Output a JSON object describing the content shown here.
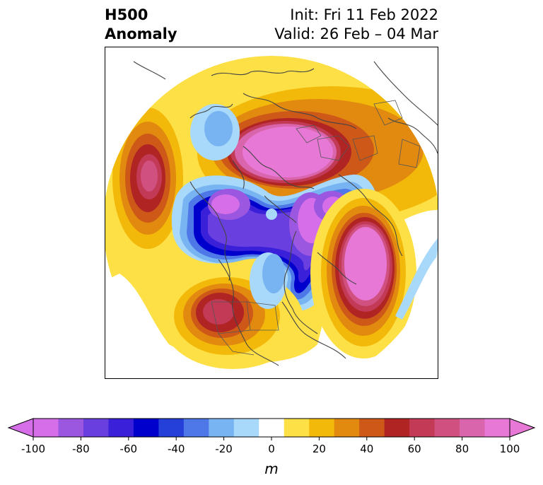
{
  "header": {
    "title_line1": "H500",
    "title_line2": "Anomaly",
    "init_text": "Init: Fri 11 Feb 2022",
    "valid_text": "Valid: 26 Feb – 04 Mar"
  },
  "colorbar": {
    "unit": "m",
    "ticks": [
      "-100",
      "-80",
      "-60",
      "-40",
      "-20",
      "0",
      "20",
      "40",
      "60",
      "80",
      "100"
    ],
    "levels": [
      -100,
      -90,
      -80,
      -70,
      -60,
      -50,
      -40,
      -30,
      -20,
      -10,
      10,
      20,
      30,
      40,
      50,
      60,
      70,
      80,
      90,
      100
    ],
    "colors": [
      "#d56ee8",
      "#9c57e0",
      "#6a3fe0",
      "#3a20d8",
      "#0000cc",
      "#2540d8",
      "#4e78e8",
      "#78b4f2",
      "#a8d8fa",
      "#ffffff",
      "#fde046",
      "#f2b90a",
      "#e28a10",
      "#cd5818",
      "#b02424",
      "#c23a56",
      "#d05080",
      "#d966ad",
      "#e878d6"
    ],
    "extend": "both"
  },
  "map": {
    "projection": "polar-stereographic-north",
    "field": "500 hPa geopotential height anomaly"
  }
}
